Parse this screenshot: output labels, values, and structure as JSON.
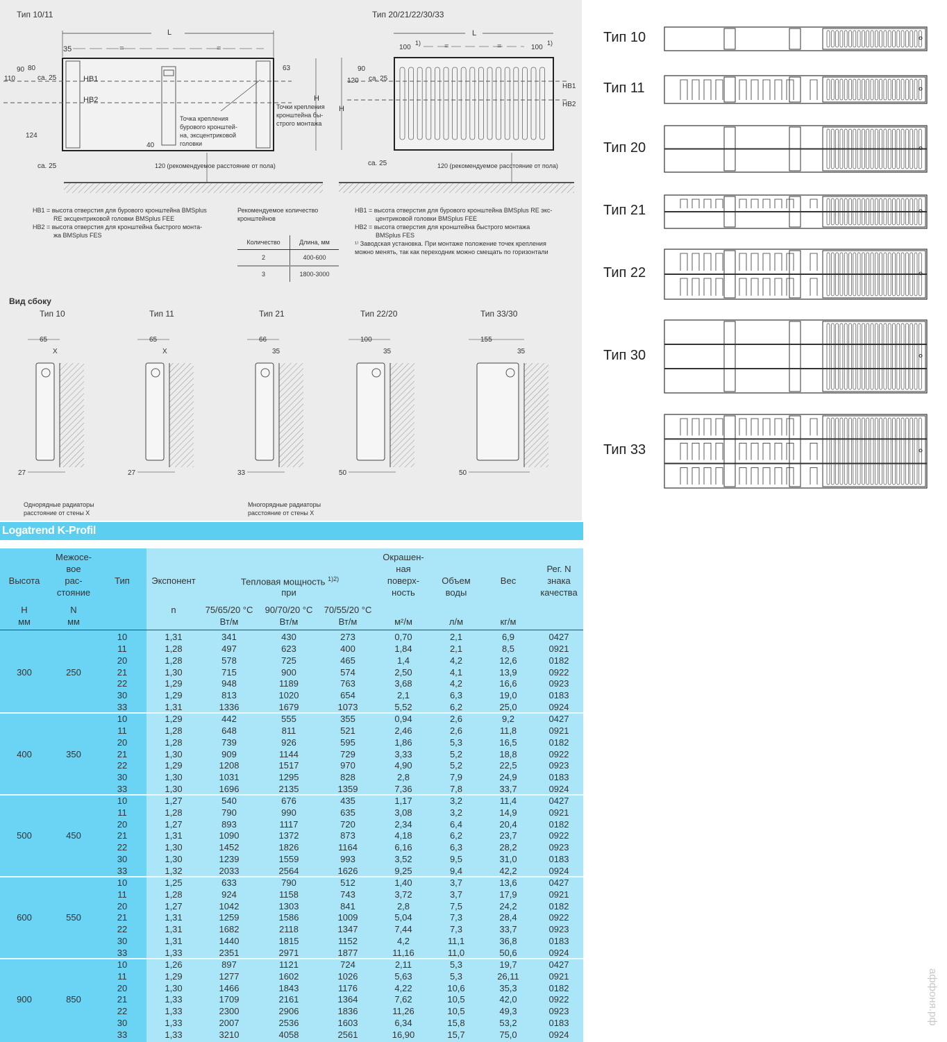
{
  "front_view_10_11": {
    "title": "Тип 10/11",
    "dim_L": "L",
    "dim_35": "35",
    "dim_eq": "=",
    "dim_90": "90",
    "dim_80": "80",
    "dim_110": "110",
    "dim_ca25_top": "ca. 25",
    "dim_124": "124",
    "dim_ca25_bottom": "ca. 25",
    "dim_40": "40",
    "dim_63": "63",
    "dim_H": "H",
    "hb1": "HB1",
    "hb2": "HB2",
    "callout_drill": [
      "Точка крепления",
      "бурового кронштей-",
      "на, эксцентриковой",
      "головки"
    ],
    "callout_quick": [
      "Точки крепления",
      "кронштейна бы-",
      "строго монтажа"
    ],
    "floor_distance": "120 (рекомендуемое расстояние от пола)"
  },
  "front_view_20_33": {
    "title": "Тип 20/21/22/30/33",
    "dim_L": "L",
    "dim_100_left": "100",
    "dim_100_right": "100",
    "footnote_mark": "1)",
    "dim_eq": "=",
    "dim_90": "90",
    "dim_120": "120",
    "dim_ca25_top": "ca. 25",
    "dim_ca25_bottom": "ca. 25",
    "dim_H": "H",
    "hb1": "HB1",
    "hb2": "HB2",
    "floor_distance": "120 (рекомендуемое расстояние от пола)"
  },
  "notes_left": {
    "hb1": [
      "HB1 = высота отверстия для бурового кронштейна BMSplus",
      "RE эксцентриковой головки BMSplus FEE"
    ],
    "hb2": [
      "HB2 = высота отверстия для кронштейна быстрого монта-",
      "жа BMSplus FES"
    ]
  },
  "bracket_recommendation": {
    "title": [
      "Рекомендуемое количество",
      "кронштейнов"
    ],
    "headers": [
      "Количество",
      "Длина, мм"
    ],
    "rows": [
      [
        "2",
        "400-600"
      ],
      [
        "3",
        "1800-3000"
      ]
    ]
  },
  "notes_right": {
    "hb1": [
      "HB1 = высота отверстия для бурового кронштейна BMSplus RE экс-",
      "центриковой головки BMSplus FEE"
    ],
    "hb2": [
      "HB2 = высота отверстия для кронштейна быстрого монтажа",
      "BMSplus FES"
    ],
    "footnote": [
      "¹⁾ Заводская установка. При монтаже положение точек крепления",
      "можно менять, так как переходник можно смещать по горизонтали"
    ]
  },
  "side_view": {
    "heading": "Вид сбоку",
    "items": [
      {
        "title": "Тип 10",
        "depth": "65",
        "gap": "X",
        "bottom": "27"
      },
      {
        "title": "Тип 11",
        "depth": "65",
        "gap": "X",
        "bottom": "27"
      },
      {
        "title": "Тип 21",
        "depth": "66",
        "gap": "35",
        "bottom": "33"
      },
      {
        "title": "Тип 22/20",
        "depth": "100",
        "gap": "35",
        "bottom": "50"
      },
      {
        "title": "Тип 33/30",
        "depth": "155",
        "gap": "35",
        "bottom": "50"
      }
    ],
    "caption_single": [
      "Однорядные радиаторы",
      "расстояние от стены X"
    ],
    "caption_multi": [
      "Многорядные радиаторы",
      "расстояние от стены X"
    ]
  },
  "cross_sections": {
    "items": [
      {
        "label": "Тип 10",
        "rows": 1,
        "convectors": 0
      },
      {
        "label": "Тип 11",
        "rows": 1,
        "convectors": 1
      },
      {
        "label": "Тип 20",
        "rows": 2,
        "convectors": 0
      },
      {
        "label": "Тип 21",
        "rows": 2,
        "convectors": 1
      },
      {
        "label": "Тип 22",
        "rows": 2,
        "convectors": 2
      },
      {
        "label": "Тип 30",
        "rows": 3,
        "convectors": 0
      },
      {
        "label": "Тип 33",
        "rows": 3,
        "convectors": 3
      }
    ]
  },
  "table": {
    "title": "Logatrend K-Profil",
    "headers": {
      "height": "Высота",
      "center_distance": [
        "Межосе-",
        "вое",
        "рас-",
        "стояние"
      ],
      "type": "Тип",
      "exponent": "Экспонент",
      "heat_output": "Тепловая мощность",
      "heat_output_sup": "1)2)",
      "heat_output_at": "при",
      "painted_surface": [
        "Окрашен-",
        "ная",
        "поверх-",
        "ность"
      ],
      "water_volume": [
        "Объем",
        "воды"
      ],
      "weight": "Вес",
      "reg_no": [
        "Рег. N",
        "знака",
        "качества"
      ]
    },
    "subheaders": {
      "height": [
        "H",
        "мм"
      ],
      "center_distance": [
        "N",
        "мм"
      ],
      "exponent": "n",
      "t1": [
        "75/65/20 °C",
        "Вт/м"
      ],
      "t2": [
        "90/70/20 °C",
        "Вт/м"
      ],
      "t3": [
        "70/55/20 °C",
        "Вт/м"
      ],
      "surface_unit": "м²/м",
      "volume_unit": "л/м",
      "weight_unit": "кг/м"
    },
    "groups": [
      {
        "H": "300",
        "N": "250",
        "rows": [
          [
            "10",
            "1,31",
            "341",
            "430",
            "273",
            "0,70",
            "2,1",
            "6,9",
            "0427"
          ],
          [
            "11",
            "1,28",
            "497",
            "623",
            "400",
            "1,84",
            "2,1",
            "8,5",
            "0921"
          ],
          [
            "20",
            "1,28",
            "578",
            "725",
            "465",
            "1,4",
            "4,2",
            "12,6",
            "0182"
          ],
          [
            "21",
            "1,30",
            "715",
            "900",
            "574",
            "2,50",
            "4,1",
            "13,9",
            "0922"
          ],
          [
            "22",
            "1,29",
            "948",
            "1189",
            "763",
            "3,68",
            "4,2",
            "16,6",
            "0923"
          ],
          [
            "30",
            "1,29",
            "813",
            "1020",
            "654",
            "2,1",
            "6,3",
            "19,0",
            "0183"
          ],
          [
            "33",
            "1,31",
            "1336",
            "1679",
            "1073",
            "5,52",
            "6,2",
            "25,0",
            "0924"
          ]
        ]
      },
      {
        "H": "400",
        "N": "350",
        "rows": [
          [
            "10",
            "1,29",
            "442",
            "555",
            "355",
            "0,94",
            "2,6",
            "9,2",
            "0427"
          ],
          [
            "11",
            "1,28",
            "648",
            "811",
            "521",
            "2,46",
            "2,6",
            "11,8",
            "0921"
          ],
          [
            "20",
            "1,28",
            "739",
            "926",
            "595",
            "1,86",
            "5,3",
            "16,5",
            "0182"
          ],
          [
            "21",
            "1,30",
            "909",
            "1144",
            "729",
            "3,33",
            "5,2",
            "18,8",
            "0922"
          ],
          [
            "22",
            "1,29",
            "1208",
            "1517",
            "970",
            "4,90",
            "5,2",
            "22,5",
            "0923"
          ],
          [
            "30",
            "1,30",
            "1031",
            "1295",
            "828",
            "2,8",
            "7,9",
            "24,9",
            "0183"
          ],
          [
            "33",
            "1,30",
            "1696",
            "2135",
            "1359",
            "7,36",
            "7,8",
            "33,7",
            "0924"
          ]
        ]
      },
      {
        "H": "500",
        "N": "450",
        "rows": [
          [
            "10",
            "1,27",
            "540",
            "676",
            "435",
            "1,17",
            "3,2",
            "11,4",
            "0427"
          ],
          [
            "11",
            "1,28",
            "790",
            "990",
            "635",
            "3,08",
            "3,2",
            "14,9",
            "0921"
          ],
          [
            "20",
            "1,27",
            "893",
            "1117",
            "720",
            "2,34",
            "6,4",
            "20,4",
            "0182"
          ],
          [
            "21",
            "1,31",
            "1090",
            "1372",
            "873",
            "4,18",
            "6,2",
            "23,7",
            "0922"
          ],
          [
            "22",
            "1,30",
            "1452",
            "1826",
            "1164",
            "6,16",
            "6,3",
            "28,2",
            "0923"
          ],
          [
            "30",
            "1,30",
            "1239",
            "1559",
            "993",
            "3,52",
            "9,5",
            "31,0",
            "0183"
          ],
          [
            "33",
            "1,32",
            "2033",
            "2564",
            "1626",
            "9,25",
            "9,4",
            "42,2",
            "0924"
          ]
        ]
      },
      {
        "H": "600",
        "N": "550",
        "rows": [
          [
            "10",
            "1,25",
            "633",
            "790",
            "512",
            "1,40",
            "3,7",
            "13,6",
            "0427"
          ],
          [
            "11",
            "1,28",
            "924",
            "1158",
            "743",
            "3,72",
            "3,7",
            "17,9",
            "0921"
          ],
          [
            "20",
            "1,27",
            "1042",
            "1303",
            "841",
            "2,8",
            "7,5",
            "24,2",
            "0182"
          ],
          [
            "21",
            "1,31",
            "1259",
            "1586",
            "1009",
            "5,04",
            "7,3",
            "28,4",
            "0922"
          ],
          [
            "22",
            "1,31",
            "1682",
            "2118",
            "1347",
            "7,44",
            "7,3",
            "33,7",
            "0923"
          ],
          [
            "30",
            "1,31",
            "1440",
            "1815",
            "1152",
            "4,2",
            "11,1",
            "36,8",
            "0183"
          ],
          [
            "33",
            "1,33",
            "2351",
            "2971",
            "1877",
            "11,16",
            "11,0",
            "50,6",
            "0924"
          ]
        ]
      },
      {
        "H": "900",
        "N": "850",
        "rows": [
          [
            "10",
            "1,26",
            "897",
            "1121",
            "724",
            "2,11",
            "5,3",
            "19,7",
            "0427"
          ],
          [
            "11",
            "1,29",
            "1277",
            "1602",
            "1026",
            "5,63",
            "5,3",
            "26,11",
            "0921"
          ],
          [
            "20",
            "1,30",
            "1466",
            "1843",
            "1176",
            "4,22",
            "10,6",
            "35,3",
            "0182"
          ],
          [
            "21",
            "1,33",
            "1709",
            "2161",
            "1364",
            "7,62",
            "10,5",
            "42,0",
            "0922"
          ],
          [
            "22",
            "1,33",
            "2300",
            "2906",
            "1836",
            "11,26",
            "10,5",
            "49,3",
            "0923"
          ],
          [
            "30",
            "1,33",
            "2007",
            "2536",
            "1603",
            "6,34",
            "15,8",
            "53,2",
            "0183"
          ],
          [
            "33",
            "1,33",
            "3210",
            "4058",
            "2561",
            "16,90",
            "15,7",
            "75,0",
            "0924"
          ]
        ]
      }
    ]
  },
  "watermark": "аффоня.рф",
  "colors": {
    "band": "#5ccef0",
    "left_columns": "#6bd3f4",
    "right_columns": "#abe6f8",
    "panel": "#ececec"
  }
}
